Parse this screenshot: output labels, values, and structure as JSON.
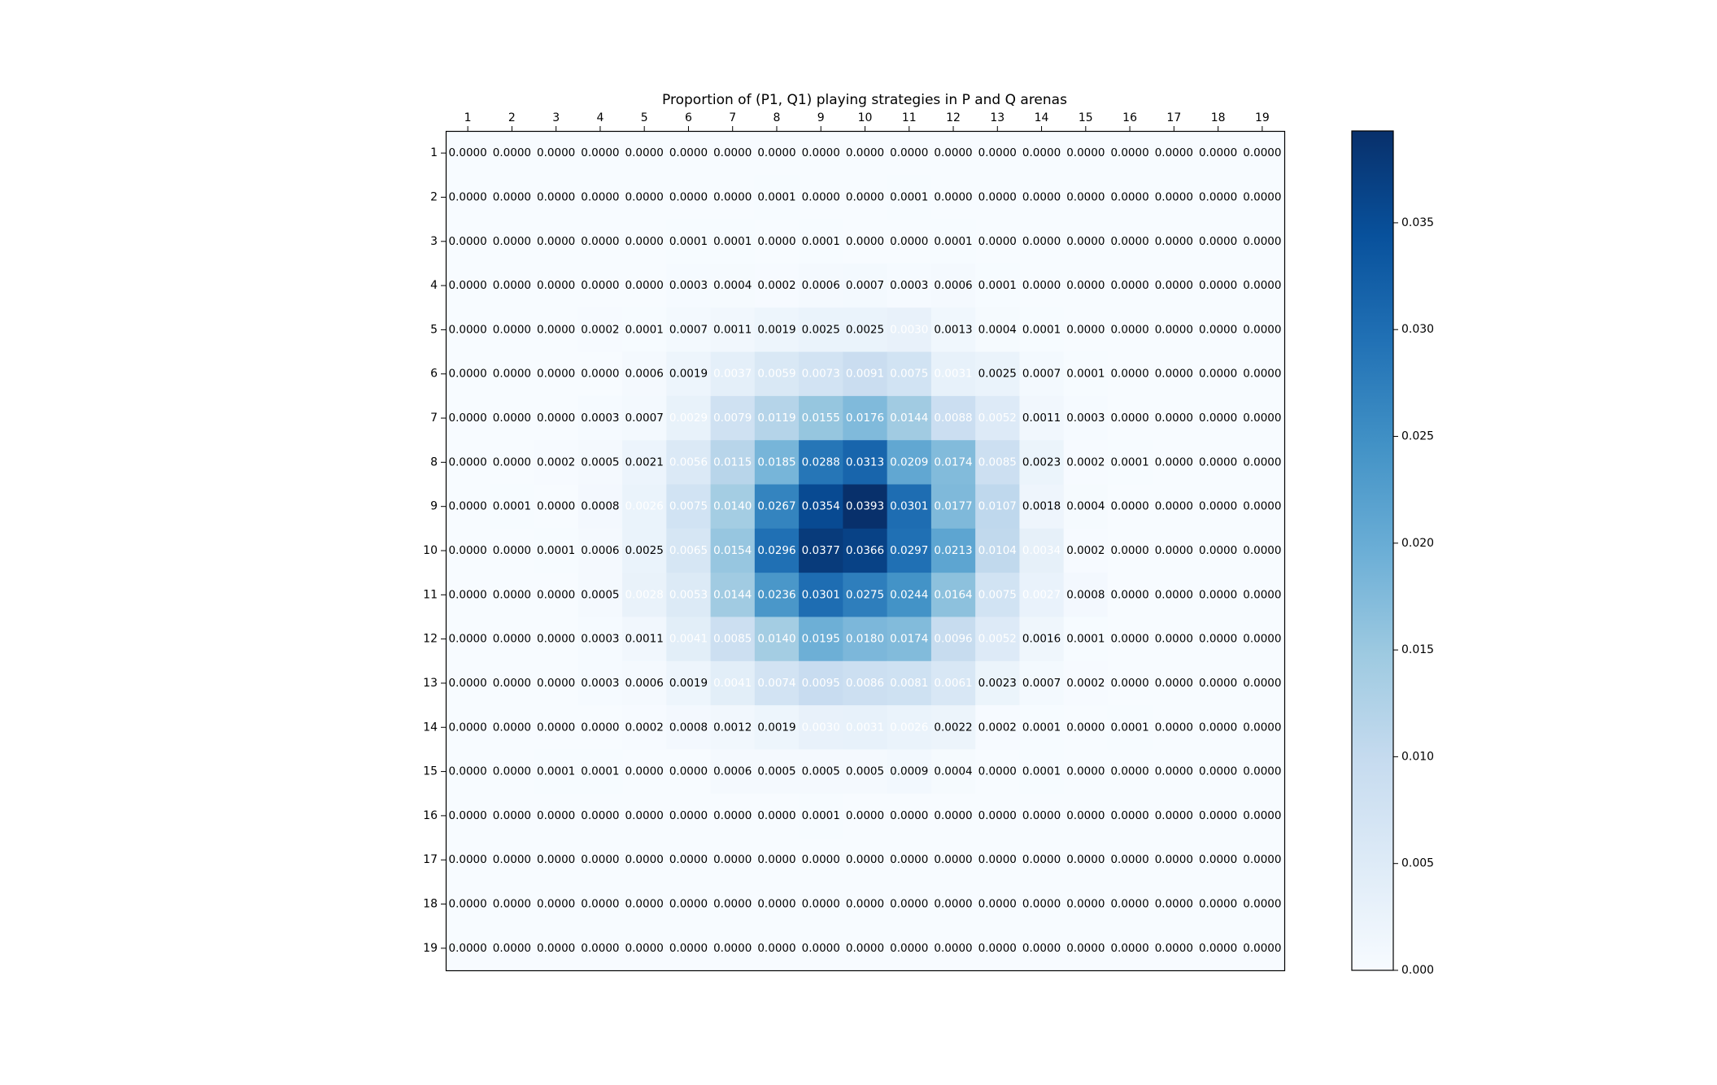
{
  "chart_data": {
    "type": "heatmap",
    "title": "Proportion of (P1, Q1) playing strategies in P and Q arenas",
    "xlabel": "",
    "ylabel": "",
    "x_categories": [
      "1",
      "2",
      "3",
      "4",
      "5",
      "6",
      "7",
      "8",
      "9",
      "10",
      "11",
      "12",
      "13",
      "14",
      "15",
      "16",
      "17",
      "18",
      "19"
    ],
    "y_categories": [
      "1",
      "2",
      "3",
      "4",
      "5",
      "6",
      "7",
      "8",
      "9",
      "10",
      "11",
      "12",
      "13",
      "14",
      "15",
      "16",
      "17",
      "18",
      "19"
    ],
    "colormap": "Blues",
    "vmin": 0.0,
    "vmax": 0.0393,
    "colorbar_ticks": [
      0.0,
      0.005,
      0.01,
      0.015,
      0.02,
      0.025,
      0.03,
      0.035
    ],
    "colorbar_tick_labels": [
      "0.000",
      "0.005",
      "0.010",
      "0.015",
      "0.020",
      "0.025",
      "0.030",
      "0.035"
    ],
    "grid": false,
    "values": [
      [
        0.0,
        0.0,
        0.0,
        0.0,
        0.0,
        0.0,
        0.0,
        0.0,
        0.0,
        0.0,
        0.0,
        0.0,
        0.0,
        0.0,
        0.0,
        0.0,
        0.0,
        0.0,
        0.0
      ],
      [
        0.0,
        0.0,
        0.0,
        0.0,
        0.0,
        0.0,
        0.0,
        0.0001,
        0.0,
        0.0,
        0.0001,
        0.0,
        0.0,
        0.0,
        0.0,
        0.0,
        0.0,
        0.0,
        0.0
      ],
      [
        0.0,
        0.0,
        0.0,
        0.0,
        0.0,
        0.0001,
        0.0001,
        0.0,
        0.0001,
        0.0,
        0.0,
        0.0001,
        0.0,
        0.0,
        0.0,
        0.0,
        0.0,
        0.0,
        0.0
      ],
      [
        0.0,
        0.0,
        0.0,
        0.0,
        0.0,
        0.0003,
        0.0004,
        0.0002,
        0.0006,
        0.0007,
        0.0003,
        0.0006,
        0.0001,
        0.0,
        0.0,
        0.0,
        0.0,
        0.0,
        0.0
      ],
      [
        0.0,
        0.0,
        0.0,
        0.0002,
        0.0001,
        0.0007,
        0.0011,
        0.0019,
        0.0025,
        0.0025,
        0.003,
        0.0013,
        0.0004,
        0.0001,
        0.0,
        0.0,
        0.0,
        0.0,
        0.0
      ],
      [
        0.0,
        0.0,
        0.0,
        0.0,
        0.0006,
        0.0019,
        0.0037,
        0.0059,
        0.0073,
        0.0091,
        0.0075,
        0.0031,
        0.0025,
        0.0007,
        0.0001,
        0.0,
        0.0,
        0.0,
        0.0
      ],
      [
        0.0,
        0.0,
        0.0,
        0.0003,
        0.0007,
        0.0029,
        0.0079,
        0.0119,
        0.0155,
        0.0176,
        0.0144,
        0.0088,
        0.0052,
        0.0011,
        0.0003,
        0.0,
        0.0,
        0.0,
        0.0
      ],
      [
        0.0,
        0.0,
        0.0002,
        0.0005,
        0.0021,
        0.0056,
        0.0115,
        0.0185,
        0.0288,
        0.0313,
        0.0209,
        0.0174,
        0.0085,
        0.0023,
        0.0002,
        0.0001,
        0.0,
        0.0,
        0.0
      ],
      [
        0.0,
        0.0001,
        0.0,
        0.0008,
        0.0026,
        0.0075,
        0.014,
        0.0267,
        0.0354,
        0.0393,
        0.0301,
        0.0177,
        0.0107,
        0.0018,
        0.0004,
        0.0,
        0.0,
        0.0,
        0.0
      ],
      [
        0.0,
        0.0,
        0.0001,
        0.0006,
        0.0025,
        0.0065,
        0.0154,
        0.0296,
        0.0377,
        0.0366,
        0.0297,
        0.0213,
        0.0104,
        0.0034,
        0.0002,
        0.0,
        0.0,
        0.0,
        0.0
      ],
      [
        0.0,
        0.0,
        0.0,
        0.0005,
        0.0028,
        0.0053,
        0.0144,
        0.0236,
        0.0301,
        0.0275,
        0.0244,
        0.0164,
        0.0075,
        0.0027,
        0.0008,
        0.0,
        0.0,
        0.0,
        0.0
      ],
      [
        0.0,
        0.0,
        0.0,
        0.0003,
        0.0011,
        0.0041,
        0.0085,
        0.014,
        0.0195,
        0.018,
        0.0174,
        0.0096,
        0.0052,
        0.0016,
        0.0001,
        0.0,
        0.0,
        0.0,
        0.0
      ],
      [
        0.0,
        0.0,
        0.0,
        0.0003,
        0.0006,
        0.0019,
        0.0041,
        0.0074,
        0.0095,
        0.0086,
        0.0081,
        0.0061,
        0.0023,
        0.0007,
        0.0002,
        0.0,
        0.0,
        0.0,
        0.0
      ],
      [
        0.0,
        0.0,
        0.0,
        0.0,
        0.0002,
        0.0008,
        0.0012,
        0.0019,
        0.003,
        0.0031,
        0.0026,
        0.0022,
        0.0002,
        0.0001,
        0.0,
        0.0001,
        0.0,
        0.0,
        0.0
      ],
      [
        0.0,
        0.0,
        0.0001,
        0.0001,
        0.0,
        0.0,
        0.0006,
        0.0005,
        0.0005,
        0.0005,
        0.0009,
        0.0004,
        0.0,
        0.0001,
        0.0,
        0.0,
        0.0,
        0.0,
        0.0
      ],
      [
        0.0,
        0.0,
        0.0,
        0.0,
        0.0,
        0.0,
        0.0,
        0.0,
        0.0001,
        0.0,
        0.0,
        0.0,
        0.0,
        0.0,
        0.0,
        0.0,
        0.0,
        0.0,
        0.0
      ],
      [
        0.0,
        0.0,
        0.0,
        0.0,
        0.0,
        0.0,
        0.0,
        0.0,
        0.0,
        0.0,
        0.0,
        0.0,
        0.0,
        0.0,
        0.0,
        0.0,
        0.0,
        0.0,
        0.0
      ],
      [
        0.0,
        0.0,
        0.0,
        0.0,
        0.0,
        0.0,
        0.0,
        0.0,
        0.0,
        0.0,
        0.0,
        0.0,
        0.0,
        0.0,
        0.0,
        0.0,
        0.0,
        0.0,
        0.0
      ],
      [
        0.0,
        0.0,
        0.0,
        0.0,
        0.0,
        0.0,
        0.0,
        0.0,
        0.0,
        0.0,
        0.0,
        0.0,
        0.0,
        0.0,
        0.0,
        0.0,
        0.0,
        0.0,
        0.0
      ]
    ]
  }
}
